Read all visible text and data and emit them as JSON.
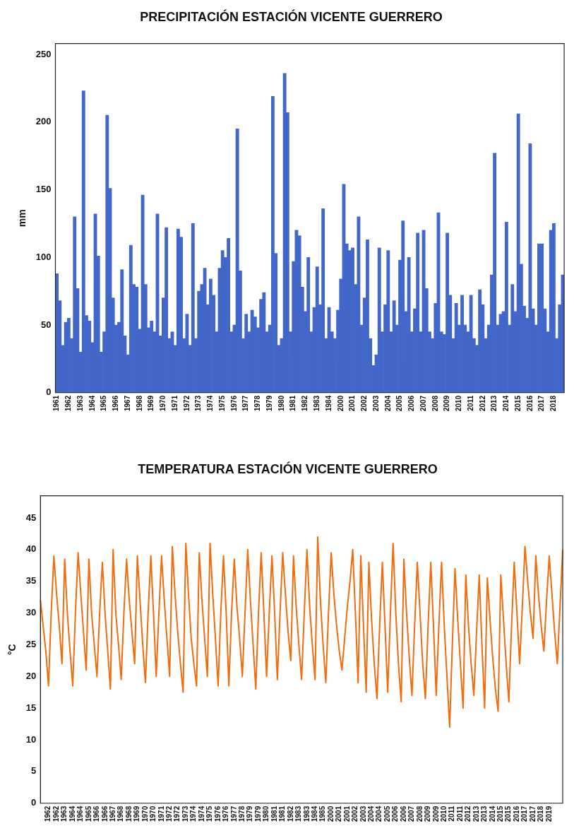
{
  "chart_data": [
    {
      "type": "bar",
      "title": "PRECIPITACIÓN ESTACIÓN VICENTE GUERRERO",
      "ylabel": "mm",
      "color": "#4267c9",
      "categories": [
        "1961",
        null,
        null,
        null,
        "1962",
        null,
        null,
        null,
        "1963",
        null,
        null,
        null,
        "1964",
        null,
        null,
        null,
        "1965",
        null,
        null,
        null,
        "1966",
        null,
        null,
        null,
        "1967",
        null,
        null,
        null,
        "1968",
        null,
        null,
        null,
        "1969",
        null,
        null,
        null,
        "1970",
        null,
        null,
        null,
        "1971",
        null,
        null,
        null,
        "1972",
        null,
        null,
        null,
        "1973",
        null,
        null,
        null,
        "1974",
        null,
        null,
        null,
        "1975",
        null,
        null,
        null,
        "1976",
        null,
        null,
        null,
        "1977",
        null,
        null,
        null,
        "1978",
        null,
        null,
        null,
        "1979",
        null,
        null,
        null,
        "1980",
        null,
        null,
        null,
        "1981",
        null,
        null,
        null,
        "1982",
        null,
        null,
        null,
        "1983",
        null,
        null,
        null,
        "1984",
        null,
        null,
        null,
        "2000",
        null,
        null,
        null,
        "2001",
        null,
        null,
        null,
        "2002",
        null,
        null,
        null,
        "2003",
        null,
        null,
        null,
        "2004",
        null,
        null,
        null,
        "2005",
        null,
        null,
        null,
        "2006",
        null,
        null,
        null,
        "2007",
        null,
        null,
        null,
        "2008",
        null,
        null,
        null,
        "2009",
        null,
        null,
        null,
        "2010",
        null,
        null,
        null,
        "2011",
        null,
        null,
        null,
        "2012",
        null,
        null,
        null,
        "2013",
        null,
        null,
        null,
        "2014",
        null,
        null,
        null,
        "2015",
        null,
        null,
        null,
        "2016",
        null,
        null,
        null,
        "2017",
        null,
        null,
        null,
        "2018",
        null,
        null,
        null
      ],
      "values": [
        88,
        68,
        35,
        52,
        55,
        40,
        130,
        77,
        30,
        223,
        57,
        53,
        37,
        132,
        101,
        30,
        45,
        205,
        151,
        70,
        50,
        52,
        91,
        42,
        28,
        109,
        80,
        78,
        47,
        146,
        80,
        48,
        53,
        45,
        132,
        42,
        70,
        122,
        40,
        45,
        35,
        121,
        115,
        40,
        58,
        35,
        125,
        40,
        75,
        80,
        92,
        65,
        84,
        72,
        45,
        92,
        105,
        100,
        114,
        45,
        50,
        195,
        90,
        40,
        58,
        45,
        61,
        56,
        48,
        69,
        74,
        45,
        50,
        219,
        103,
        35,
        40,
        236,
        207,
        45,
        97,
        120,
        116,
        78,
        60,
        100,
        45,
        63,
        93,
        65,
        136,
        40,
        63,
        45,
        40,
        61,
        84,
        154,
        110,
        105,
        107,
        80,
        130,
        50,
        70,
        113,
        40,
        20,
        28,
        107,
        45,
        65,
        105,
        45,
        68,
        50,
        98,
        127,
        60,
        100,
        45,
        62,
        118,
        45,
        120,
        77,
        45,
        40,
        66,
        133,
        45,
        43,
        118,
        72,
        40,
        66,
        50,
        72,
        50,
        45,
        72,
        40,
        35,
        76,
        65,
        40,
        50,
        87,
        177,
        50,
        58,
        60,
        126,
        50,
        80,
        60,
        206,
        95,
        64,
        55,
        184,
        62,
        50,
        110,
        110,
        62,
        45,
        120,
        125,
        40,
        65,
        87
      ],
      "ylim": [
        0,
        258
      ],
      "yticks": [
        0,
        50,
        100,
        150,
        200,
        250
      ]
    },
    {
      "type": "line",
      "title": "TEMPERATURA ESTACIÓN VICENTE GUERRERO",
      "ylabel": "°C",
      "color": "#f26b0c",
      "categories": [
        null,
        null,
        null,
        "1962",
        null,
        null,
        "1962",
        null,
        null,
        "1963",
        null,
        null,
        "1964",
        null,
        null,
        "1964",
        null,
        null,
        "1965",
        null,
        null,
        "1966",
        null,
        null,
        "1966",
        null,
        null,
        "1967",
        null,
        null,
        "1968",
        null,
        null,
        "1968",
        null,
        null,
        "1969",
        null,
        null,
        "1970",
        null,
        null,
        "1970",
        null,
        null,
        "1971",
        null,
        null,
        "1972",
        null,
        null,
        "1972",
        null,
        null,
        "1973",
        null,
        null,
        "1974",
        null,
        null,
        "1974",
        null,
        null,
        "1975",
        null,
        null,
        "1976",
        null,
        null,
        "1976",
        null,
        null,
        "1977",
        null,
        null,
        "1978",
        null,
        null,
        "1979",
        null,
        null,
        "1979",
        null,
        null,
        "1980",
        null,
        null,
        "1981",
        null,
        null,
        "1981",
        null,
        null,
        "1982",
        null,
        null,
        "1983",
        null,
        null,
        "1983",
        null,
        null,
        "1984",
        null,
        null,
        "1985",
        null,
        null,
        "2000",
        null,
        null,
        "2001",
        null,
        null,
        "2001",
        null,
        null,
        "2002",
        null,
        null,
        "2003",
        null,
        null,
        "2004",
        null,
        null,
        "2004",
        null,
        null,
        "2005",
        null,
        null,
        "2006",
        null,
        null,
        "2006",
        null,
        null,
        "2007",
        null,
        null,
        "2008",
        null,
        null,
        "2009",
        null,
        null,
        "2009",
        null,
        null,
        "2010",
        null,
        null,
        "2011",
        null,
        null,
        "2011",
        null,
        null,
        "2012",
        null,
        null,
        "2013",
        null,
        null,
        "2013",
        null,
        null,
        "2014",
        null,
        null,
        "2015",
        null,
        null,
        "2015",
        null,
        null,
        "2016",
        null,
        null,
        "2017",
        null,
        null,
        "2017",
        null,
        null,
        "2018",
        null,
        null,
        "2019",
        null,
        null,
        null,
        null,
        null
      ],
      "values": [
        32,
        28,
        24,
        18.5,
        30,
        39,
        33,
        28,
        22,
        38.5,
        30,
        24,
        18.5,
        30,
        39.5,
        33,
        27,
        21,
        38.5,
        30,
        25,
        20,
        30,
        38,
        30,
        24,
        18,
        40,
        30,
        25,
        19.5,
        30,
        38.5,
        32,
        27,
        22,
        39,
        32,
        25,
        19,
        30,
        39,
        30,
        20,
        30,
        39,
        32,
        26,
        20,
        40.5,
        33,
        27,
        22,
        17.5,
        41,
        33,
        26,
        22,
        18.5,
        39.5,
        32,
        26,
        20,
        41,
        33,
        26,
        18.5,
        30,
        39,
        30,
        18.5,
        30,
        38.5,
        31,
        26,
        20,
        30,
        40,
        32,
        25,
        18,
        30,
        39.5,
        30,
        20,
        30,
        39,
        30,
        19.5,
        30,
        39.5,
        33,
        27,
        22.5,
        39,
        31,
        25,
        19.5,
        30,
        40,
        31,
        25,
        19.5,
        42,
        32,
        25,
        19,
        30,
        39.5,
        33,
        28,
        24,
        21,
        26,
        31,
        35,
        40,
        30,
        19,
        39,
        28,
        17.5,
        38,
        29,
        22,
        16.5,
        28,
        38,
        28,
        17.5,
        30,
        41,
        30,
        22,
        16,
        38.5,
        30,
        23,
        17,
        28,
        38,
        30,
        22,
        16.5,
        28,
        38,
        28,
        17,
        28,
        38,
        28,
        20,
        12,
        25,
        37,
        29,
        22,
        15,
        36,
        28,
        22,
        17,
        27,
        36,
        25,
        15,
        35.5,
        29,
        23,
        18,
        14.5,
        36,
        29,
        22,
        16,
        28,
        38,
        30,
        22,
        31,
        40.5,
        35,
        30,
        26,
        39,
        33,
        28,
        24,
        32,
        39,
        33,
        27,
        22,
        31,
        40
      ],
      "ylim": [
        0,
        48.5
      ],
      "yticks": [
        0,
        5,
        10,
        15,
        20,
        25,
        30,
        35,
        40,
        45
      ]
    }
  ]
}
